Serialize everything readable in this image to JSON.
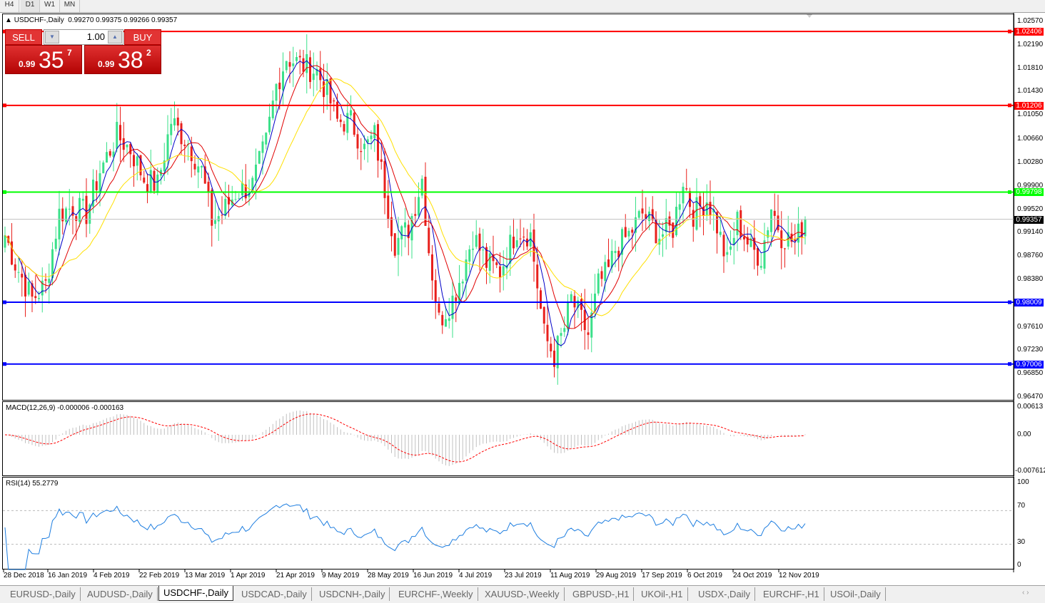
{
  "timeframes": [
    "H4",
    "D1",
    "W1",
    "MN"
  ],
  "active_timeframe": "D1",
  "header": {
    "symbol": "USDCHF-,Daily",
    "ohlc": "0.99270 0.99375 0.99266 0.99357"
  },
  "trade_panel": {
    "sell_label": "SELL",
    "buy_label": "BUY",
    "lot": "1.00",
    "sell_small": "0.99",
    "sell_big": "35",
    "sell_pip": "7",
    "buy_small": "0.99",
    "buy_big": "38",
    "buy_pip": "2"
  },
  "price_axis": [
    "1.02570",
    "1.02190",
    "1.01810",
    "1.01430",
    "1.01050",
    "1.00660",
    "1.00280",
    "0.99900",
    "0.99520",
    "0.99140",
    "0.98760",
    "0.98380",
    "0.97610",
    "0.97230",
    "0.96850",
    "0.96470"
  ],
  "levels": [
    {
      "price": "1.02406",
      "color": "#ff0000"
    },
    {
      "price": "1.01206",
      "color": "#ff0000"
    },
    {
      "price": "0.99798",
      "color": "#00ff00"
    },
    {
      "price": "0.98009",
      "color": "#0000ff"
    },
    {
      "price": "0.97006",
      "color": "#0000ff"
    }
  ],
  "current_price": "0.99357",
  "macd": {
    "label": "MACD(12,26,9) -0.000006 -0.000163",
    "axis": [
      "0.00613",
      "0.00",
      "-0.007612"
    ]
  },
  "rsi": {
    "label": "RSI(14) 55.2779",
    "axis": [
      "100",
      "70",
      "30",
      "0"
    ]
  },
  "dates": [
    "28 Dec 2018",
    "16 Jan 2019",
    "4 Feb 2019",
    "22 Feb 2019",
    "13 Mar 2019",
    "1 Apr 2019",
    "21 Apr 2019",
    "9 May 2019",
    "28 May 2019",
    "16 Jun 2019",
    "4 Jul 2019",
    "23 Jul 2019",
    "11 Aug 2019",
    "29 Aug 2019",
    "17 Sep 2019",
    "6 Oct 2019",
    "24 Oct 2019",
    "12 Nov 2019"
  ],
  "tabs": [
    "EURUSD-,Daily",
    "AUDUSD-,Daily",
    "USDCHF-,Daily",
    "USDCAD-,Daily",
    "USDCNH-,Daily",
    "EURCHF-,Weekly",
    "XAUUSD-,Weekly",
    "GBPUSD-,H1",
    "UKOil-,H1",
    "USDX-,Daily",
    "EURCHF-,H1",
    "USOil-,Daily"
  ],
  "active_tab": "USDCHF-,Daily",
  "colors": {
    "bull": "#3be08a",
    "bear": "#e8201c",
    "ma_fast": "#0000c8",
    "ma_mid": "#e00000",
    "ma_slow": "#ffe000",
    "rsi": "#1e7ee0",
    "macd_signal": "#ff0000",
    "macd_hist": "#c0c0c0"
  },
  "chart_data": {
    "type": "candlestick",
    "price_range": [
      0.9647,
      1.0257
    ],
    "bars": 237,
    "close_waypoints": [
      [
        0,
        0.991
      ],
      [
        3,
        0.9864
      ],
      [
        8,
        0.9806
      ],
      [
        12,
        0.9829
      ],
      [
        16,
        0.9945
      ],
      [
        20,
        0.9956
      ],
      [
        24,
        0.9945
      ],
      [
        28,
        1.0014
      ],
      [
        33,
        1.0072
      ],
      [
        37,
        1.0049
      ],
      [
        41,
        1.0002
      ],
      [
        45,
        0.9991
      ],
      [
        49,
        1.0095
      ],
      [
        54,
        1.006
      ],
      [
        58,
        1.0014
      ],
      [
        61,
        0.9933
      ],
      [
        64,
        0.9945
      ],
      [
        68,
        0.9979
      ],
      [
        73,
        0.9991
      ],
      [
        77,
        1.006
      ],
      [
        80,
        1.0153
      ],
      [
        83,
        1.0199
      ],
      [
        87,
        1.0188
      ],
      [
        92,
        1.0176
      ],
      [
        95,
        1.0141
      ],
      [
        98,
        1.0095
      ],
      [
        102,
        1.0095
      ],
      [
        106,
        1.0049
      ],
      [
        109,
        1.0072
      ],
      [
        113,
        0.9956
      ],
      [
        115,
        0.9898
      ],
      [
        119,
        0.9921
      ],
      [
        123,
        1.0002
      ],
      [
        125,
        0.9887
      ],
      [
        128,
        0.9771
      ],
      [
        132,
        0.9806
      ],
      [
        135,
        0.9852
      ],
      [
        138,
        0.991
      ],
      [
        142,
        0.9864
      ],
      [
        146,
        0.9852
      ],
      [
        151,
        0.9921
      ],
      [
        155,
        0.991
      ],
      [
        157,
        0.9829
      ],
      [
        159,
        0.9748
      ],
      [
        162,
        0.9713
      ],
      [
        165,
        0.9759
      ],
      [
        167,
        0.9806
      ],
      [
        172,
        0.9748
      ],
      [
        175,
        0.9829
      ],
      [
        178,
        0.9852
      ],
      [
        180,
        0.9887
      ],
      [
        184,
        0.991
      ],
      [
        188,
        0.9945
      ],
      [
        193,
        0.991
      ],
      [
        197,
        0.9921
      ],
      [
        200,
        1.0002
      ],
      [
        203,
        0.9945
      ],
      [
        207,
        0.9968
      ],
      [
        209,
        0.9945
      ],
      [
        213,
        0.9864
      ],
      [
        216,
        0.9933
      ],
      [
        220,
        0.9887
      ],
      [
        223,
        0.9875
      ],
      [
        226,
        0.9956
      ],
      [
        229,
        0.991
      ],
      [
        233,
        0.9898
      ],
      [
        236,
        0.99357
      ]
    ]
  }
}
